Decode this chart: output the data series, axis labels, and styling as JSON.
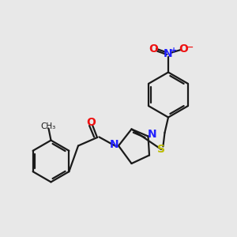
{
  "bg_color": "#e8e8e8",
  "bond_color": "#1a1a1a",
  "N_color": "#2020ff",
  "O_color": "#ee1111",
  "S_color": "#bbbb00",
  "line_width": 1.6,
  "figsize": [
    3.0,
    3.0
  ],
  "dpi": 100,
  "xlim": [
    0,
    10
  ],
  "ylim": [
    0,
    10
  ]
}
